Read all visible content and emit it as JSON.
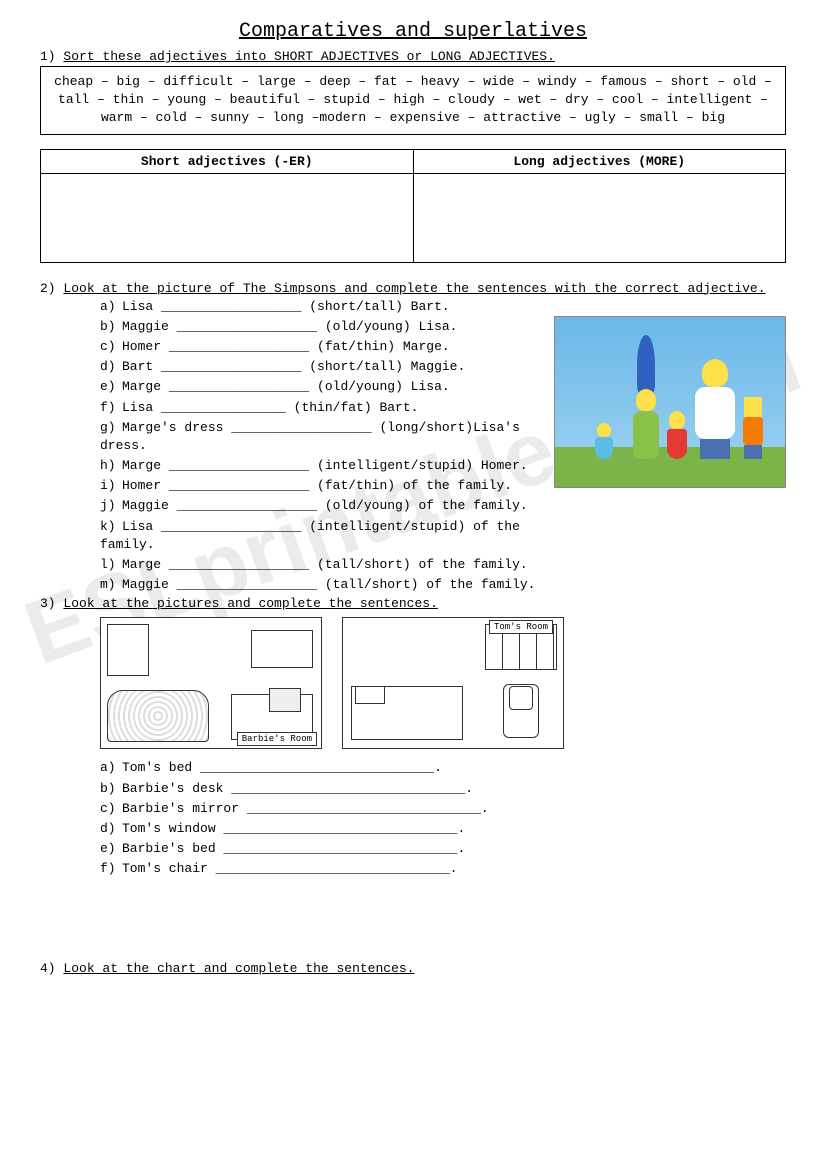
{
  "title": "Comparatives and superlatives",
  "ex1": {
    "num": "1)",
    "instr": "Sort these adjectives into SHORT ADJECTIVES or LONG ADJECTIVES.",
    "words": "cheap – big – difficult – large – deep – fat – heavy – wide – windy – famous – short – old – tall – thin – young – beautiful – stupid – high – cloudy – wet – dry – cool – intelligent – warm – cold – sunny – long –modern – expensive – attractive – ugly – small – big",
    "col1": "Short adjectives (-ER)",
    "col2": "Long adjectives (MORE)"
  },
  "ex2": {
    "num": "2)",
    "instr": "Look at the picture of The Simpsons and complete the sentences with the correct adjective.",
    "items": [
      {
        "l": "a)",
        "pre": "Lisa ",
        "blank": "__________________",
        "post": " (short/tall) Bart."
      },
      {
        "l": "b)",
        "pre": "Maggie ",
        "blank": "__________________",
        "post": " (old/young) Lisa."
      },
      {
        "l": "c)",
        "pre": "Homer ",
        "blank": "__________________",
        "post": " (fat/thin) Marge."
      },
      {
        "l": "d)",
        "pre": "Bart ",
        "blank": "__________________",
        "post": " (short/tall) Maggie."
      },
      {
        "l": "e)",
        "pre": "Marge ",
        "blank": "__________________",
        "post": " (old/young) Lisa."
      },
      {
        "l": "f)",
        "pre": "Lisa ",
        "blank": "________________",
        "post": " (thin/fat) Bart."
      },
      {
        "l": "g)",
        "pre": "Marge's dress ",
        "blank": "__________________",
        "post": " (long/short)Lisa's dress."
      },
      {
        "l": "h)",
        "pre": "Marge    ",
        "blank": "__________________",
        "post": "    (intelligent/stupid) Homer."
      },
      {
        "l": "i)",
        "pre": "Homer ",
        "blank": "__________________",
        "post": " (fat/thin) of the family."
      },
      {
        "l": "j)",
        "pre": "Maggie ",
        "blank": "__________________",
        "post": " (old/young) of the family."
      },
      {
        "l": "k)",
        "pre": "Lisa ",
        "blank": "__________________",
        "post": " (intelligent/stupid) of the family."
      },
      {
        "l": "l)",
        "pre": "Marge ",
        "blank": "__________________",
        "post": " (tall/short) of the family."
      },
      {
        "l": "m)",
        "pre": "Maggie ",
        "blank": "__________________",
        "post": " (tall/short) of the family."
      }
    ]
  },
  "ex3": {
    "num": "3)",
    "instr": "Look at the pictures and complete the sentences.",
    "room1": "Barbie's Room",
    "room2": "Tom's Room",
    "items": [
      {
        "l": "a)",
        "pre": "Tom's bed ",
        "blank": "______________________________",
        "post": "."
      },
      {
        "l": "b)",
        "pre": "Barbie's desk ",
        "blank": "______________________________",
        "post": "."
      },
      {
        "l": "c)",
        "pre": "Barbie's mirror ",
        "blank": "______________________________",
        "post": "."
      },
      {
        "l": "d)",
        "pre": "Tom's window ",
        "blank": "______________________________",
        "post": "."
      },
      {
        "l": "e)",
        "pre": "Barbie's bed ",
        "blank": "______________________________",
        "post": "."
      },
      {
        "l": "f)",
        "pre": "Tom's chair ",
        "blank": "______________________________",
        "post": "."
      }
    ]
  },
  "ex4": {
    "num": "4)",
    "instr": "Look at the chart and complete the sentences."
  },
  "watermark": "ESLprintables.com"
}
